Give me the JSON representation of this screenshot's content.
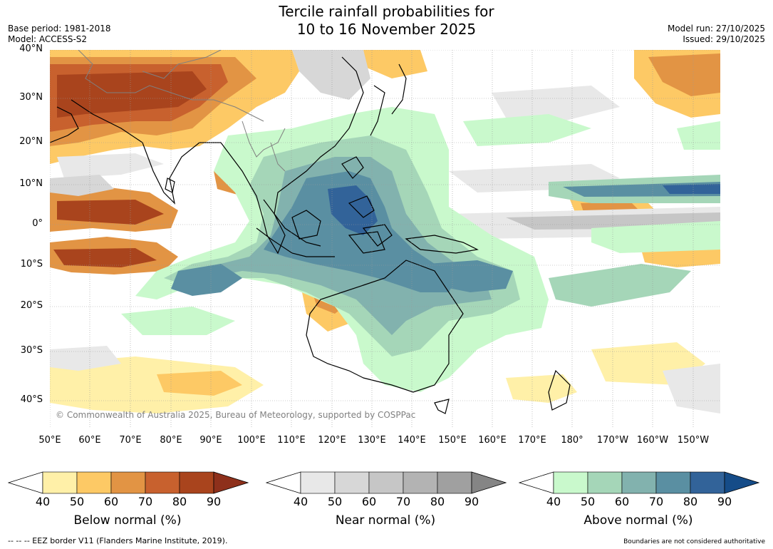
{
  "title": {
    "line1": "Tercile rainfall probabilities for",
    "line2": "10 to 16 November 2025"
  },
  "meta": {
    "base_period": "Base period: 1981-2018",
    "model": "Model: ACCESS-S2",
    "model_run": "Model run: 27/10/2025",
    "issued": "Issued: 29/10/2025"
  },
  "map": {
    "copyright": "© Commonwealth of Australia 2025, Bureau of Meteorology, supported by COSPPac",
    "lat_labels": [
      "40°N",
      "30°N",
      "20°N",
      "10°N",
      "0°",
      "10°S",
      "20°S",
      "30°S",
      "40°S"
    ],
    "lon_labels": [
      "50°E",
      "60°E",
      "70°E",
      "80°E",
      "90°E",
      "100°E",
      "110°E",
      "120°E",
      "130°E",
      "140°E",
      "150°E",
      "160°E",
      "170°E",
      "180°",
      "170°W",
      "160°W",
      "150°W"
    ],
    "ocean_color": "#ffffff",
    "coastline_color": "#000000",
    "border_color": "#808080"
  },
  "colorbars": [
    {
      "title": "Below normal (%)",
      "ticks": [
        "40",
        "50",
        "60",
        "70",
        "80",
        "90"
      ],
      "colors": [
        "#fff0a8",
        "#fdc965",
        "#e29444",
        "#c8612e",
        "#a9441d"
      ],
      "over_color": "#8e301b"
    },
    {
      "title": "Near normal (%)",
      "ticks": [
        "40",
        "50",
        "60",
        "70",
        "80",
        "90"
      ],
      "colors": [
        "#e8e8e8",
        "#d7d7d7",
        "#c6c6c6",
        "#b3b3b3",
        "#a0a0a0"
      ],
      "over_color": "#858585"
    },
    {
      "title": "Above normal (%)",
      "ticks": [
        "40",
        "50",
        "60",
        "70",
        "80",
        "90"
      ],
      "colors": [
        "#c9f9cc",
        "#a5d6b8",
        "#82b2ae",
        "#5a8fa2",
        "#326399"
      ],
      "over_color": "#154c88"
    }
  ],
  "footer": {
    "eez": "--  --  -- EEZ border V11 (Flanders Marine Institute, 2019).",
    "disclaimer": "Boundaries are not considered authoritative"
  }
}
